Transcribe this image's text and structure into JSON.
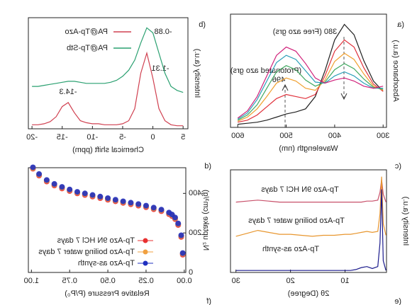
{
  "chart_data": [
    {
      "type": "line",
      "panel_label": "(a",
      "y_label": "Absorbance (a.u.)",
      "x_label": "Wavelength (nm)",
      "annotations": [
        "380 (Free azo grs)",
        "(Protonated azo grs)",
        "496"
      ],
      "x": [
        300,
        320,
        340,
        360,
        380,
        400,
        420,
        440,
        460,
        480,
        500,
        520,
        540,
        560,
        580,
        600
      ],
      "xlim": [
        293,
        615
      ],
      "xticks": [
        300,
        400,
        500,
        600
      ],
      "ylim": [
        0,
        1.1
      ],
      "series": [
        {
          "color": "#222222",
          "values": [
            0.35,
            0.45,
            0.65,
            0.9,
            1.0,
            0.85,
            0.55,
            0.3,
            0.18,
            0.15,
            0.13,
            0.1,
            0.07,
            0.05,
            0.04,
            0.03
          ]
        },
        {
          "color": "#e0303a",
          "values": [
            0.35,
            0.42,
            0.58,
            0.78,
            0.85,
            0.74,
            0.5,
            0.32,
            0.28,
            0.3,
            0.32,
            0.28,
            0.2,
            0.12,
            0.07,
            0.05
          ]
        },
        {
          "color": "#f0a030",
          "values": [
            0.36,
            0.4,
            0.52,
            0.66,
            0.72,
            0.64,
            0.46,
            0.36,
            0.38,
            0.45,
            0.48,
            0.43,
            0.3,
            0.18,
            0.1,
            0.06
          ]
        },
        {
          "color": "#40a860",
          "values": [
            0.37,
            0.39,
            0.47,
            0.57,
            0.62,
            0.56,
            0.44,
            0.4,
            0.46,
            0.56,
            0.6,
            0.54,
            0.38,
            0.22,
            0.12,
            0.07
          ]
        },
        {
          "color": "#2a9fb8",
          "values": [
            0.38,
            0.38,
            0.43,
            0.5,
            0.54,
            0.5,
            0.43,
            0.44,
            0.55,
            0.66,
            0.7,
            0.63,
            0.45,
            0.27,
            0.14,
            0.08
          ]
        },
        {
          "color": "#d0207a",
          "values": [
            0.4,
            0.38,
            0.4,
            0.45,
            0.48,
            0.46,
            0.43,
            0.48,
            0.62,
            0.74,
            0.78,
            0.7,
            0.5,
            0.3,
            0.16,
            0.09
          ]
        }
      ]
    },
    {
      "type": "line",
      "panel_label": "(b",
      "y_label": "Intensity (a.u.)",
      "x_label": "Chemical shift (ppm)",
      "annotations": [
        "-0.88",
        "-1.31",
        "-14.3"
      ],
      "x": [
        5,
        4,
        3,
        2,
        1,
        0,
        -1,
        -2,
        -3,
        -4,
        -5,
        -6,
        -7,
        -8,
        -9,
        -10,
        -11,
        -12,
        -13,
        -14,
        -15,
        -16,
        -17,
        -18,
        -19,
        -20
      ],
      "xlim": [
        5.8,
        -20.6
      ],
      "xticks": [
        5,
        0,
        -5,
        -10,
        -15,
        -20
      ],
      "ylim": [
        0,
        1.1
      ],
      "series": [
        {
          "name": "PA@Tp-Azo",
          "color": "#d04050",
          "values": [
            0.03,
            0.03,
            0.04,
            0.08,
            0.2,
            0.5,
            0.75,
            0.55,
            0.2,
            0.08,
            0.05,
            0.04,
            0.04,
            0.04,
            0.05,
            0.05,
            0.06,
            0.08,
            0.16,
            0.26,
            0.22,
            0.12,
            0.07,
            0.05,
            0.04,
            0.04
          ]
        },
        {
          "name": "PA@Tp-Stb",
          "color": "#2aa070",
          "values": [
            0.36,
            0.38,
            0.42,
            0.55,
            0.75,
            0.95,
            1.0,
            0.85,
            0.68,
            0.58,
            0.52,
            0.48,
            0.46,
            0.45,
            0.45,
            0.45,
            0.45,
            0.46,
            0.47,
            0.47,
            0.46,
            0.45,
            0.44,
            0.43,
            0.42,
            0.42
          ]
        }
      ]
    },
    {
      "type": "line",
      "panel_label": "(c",
      "y_label": "Intensity (a.u.)",
      "x_label": "2θ (Degree)",
      "x": [
        2.5,
        3,
        3.3,
        3.6,
        4,
        5,
        6,
        7,
        8,
        9,
        10,
        12,
        14,
        16,
        18,
        20,
        22,
        24,
        26,
        28,
        30
      ],
      "xlim": [
        2.4,
        31
      ],
      "xticks": [
        10,
        20,
        30
      ],
      "ylim": [
        0,
        1.05
      ],
      "series_labels_inline": true,
      "series": [
        {
          "name": "Tp-Azo 9N HCl 7 days",
          "color": "#c8506a",
          "values": [
            0.72,
            0.8,
            0.95,
            0.82,
            0.74,
            0.73,
            0.73,
            0.72,
            0.72,
            0.72,
            0.72,
            0.72,
            0.72,
            0.72,
            0.72,
            0.72,
            0.72,
            0.73,
            0.74,
            0.73,
            0.72
          ]
        },
        {
          "name": "Tp-Azo boiling water 7 days",
          "color": "#e8962e",
          "values": [
            0.38,
            0.5,
            0.98,
            0.6,
            0.42,
            0.41,
            0.42,
            0.41,
            0.4,
            0.39,
            0.39,
            0.38,
            0.38,
            0.37,
            0.38,
            0.39,
            0.39,
            0.41,
            0.43,
            0.4,
            0.37
          ]
        },
        {
          "name": "Tp-Azo as-synth",
          "color": "#1a1a8c",
          "values": [
            0.02,
            0.12,
            0.85,
            0.3,
            0.06,
            0.04,
            0.06,
            0.05,
            0.03,
            0.02,
            0.02,
            0.02,
            0.02,
            0.02,
            0.02,
            0.02,
            0.02,
            0.02,
            0.02,
            0.02,
            0.02
          ]
        }
      ]
    },
    {
      "type": "scatter",
      "panel_label": "(d",
      "y_label": "N₂ uptake (cm³/g)",
      "x_label": "Relative Pressure (P/P₀)",
      "x": [
        0.01,
        0.02,
        0.04,
        0.06,
        0.08,
        0.1,
        0.15,
        0.2,
        0.25,
        0.3,
        0.35,
        0.4,
        0.45,
        0.5,
        0.55,
        0.6,
        0.65,
        0.7,
        0.75,
        0.8,
        0.85,
        0.9,
        0.95,
        0.99
      ],
      "xlim": [
        -0.01,
        1.02
      ],
      "xticks": [
        {
          "value": 0,
          "label": "0.00"
        },
        0.25,
        {
          "value": 0.5,
          "label": "0.50"
        },
        0.75,
        {
          "value": 1,
          "label": "1.00"
        }
      ],
      "ylim": [
        0,
        530
      ],
      "yticks": [
        0,
        200,
        400
      ],
      "legend": "lower-right",
      "series": [
        {
          "name": "Tp-Azo 9N HCl 7 days",
          "color": "#e83030",
          "values": [
            90,
            180,
            240,
            270,
            285,
            295,
            310,
            320,
            330,
            338,
            345,
            352,
            360,
            368,
            376,
            384,
            392,
            400,
            412,
            425,
            440,
            460,
            490,
            525
          ]
        },
        {
          "name": "Tp-Azo boiling water 7 days",
          "color": "#f0a040",
          "values": [
            95,
            185,
            245,
            275,
            290,
            300,
            315,
            325,
            335,
            343,
            350,
            357,
            365,
            373,
            381,
            389,
            397,
            405,
            417,
            430,
            445,
            465,
            495,
            528
          ]
        },
        {
          "name": "Tp-Azo as-synth",
          "color": "#2030c0",
          "values": [
            98,
            188,
            248,
            278,
            293,
            303,
            318,
            328,
            338,
            346,
            353,
            360,
            368,
            376,
            384,
            392,
            400,
            408,
            420,
            433,
            448,
            468,
            498,
            532
          ]
        }
      ]
    }
  ],
  "cropped_labels": [
    "(e",
    "(f"
  ]
}
